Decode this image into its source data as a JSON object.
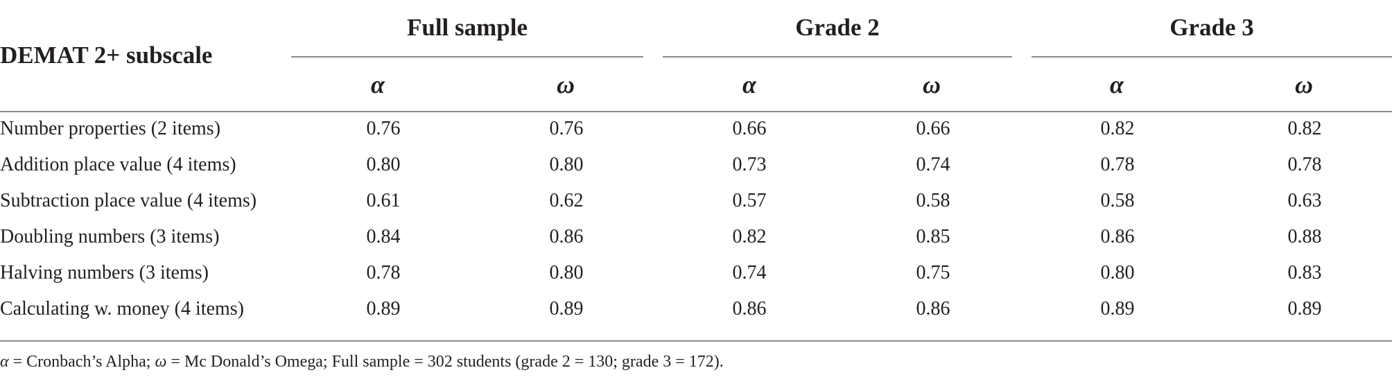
{
  "table": {
    "stub_header": "DEMAT 2+ subscale",
    "groups": [
      {
        "title": "Full sample",
        "sub": [
          "α",
          "ω"
        ]
      },
      {
        "title": "Grade 2",
        "sub": [
          "α",
          "ω"
        ]
      },
      {
        "title": "Grade 3",
        "sub": [
          "α",
          "ω"
        ]
      }
    ],
    "rows": [
      {
        "label": "Number properties (2 items)",
        "values": [
          "0.76",
          "0.76",
          "0.66",
          "0.66",
          "0.82",
          "0.82"
        ]
      },
      {
        "label": "Addition place value (4 items)",
        "values": [
          "0.80",
          "0.80",
          "0.73",
          "0.74",
          "0.78",
          "0.78"
        ]
      },
      {
        "label": "Subtraction place value (4 items)",
        "values": [
          "0.61",
          "0.62",
          "0.57",
          "0.58",
          "0.58",
          "0.63"
        ]
      },
      {
        "label": "Doubling numbers (3 items)",
        "values": [
          "0.84",
          "0.86",
          "0.82",
          "0.85",
          "0.86",
          "0.88"
        ]
      },
      {
        "label": "Halving numbers (3 items)",
        "values": [
          "0.78",
          "0.80",
          "0.74",
          "0.75",
          "0.80",
          "0.83"
        ]
      },
      {
        "label": "Calculating w. money (4 items)",
        "values": [
          "0.89",
          "0.89",
          "0.86",
          "0.86",
          "0.89",
          "0.89"
        ]
      }
    ]
  },
  "footnote": {
    "alpha_symbol": "α",
    "alpha_text": " = Cronbach’s Alpha; ",
    "omega_symbol": "ω",
    "omega_text": " = Mc Donald’s Omega; Full sample = 302 students (grade 2 = 130; grade 3 = 172)."
  }
}
